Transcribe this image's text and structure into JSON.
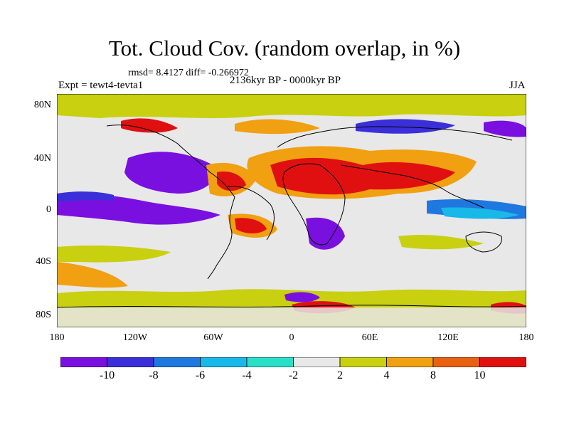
{
  "figure": {
    "title": "Tot. Cloud Cov. (random overlap, in %)",
    "stats": "rmsd= 8.4127 diff= -0.266972",
    "experiment": "Expt = tewt4-tevta1",
    "period": "2136kyr BP - 0000kyr BP",
    "season": "JJA"
  },
  "axes": {
    "lat_labels": [
      "80N",
      "40N",
      "0",
      "40S",
      "80S"
    ],
    "lon_labels": [
      "180",
      "120W",
      "60W",
      "0",
      "60E",
      "120E",
      "180"
    ]
  },
  "colorbar": {
    "labels": [
      "-10",
      "-8",
      "-6",
      "-4",
      "-2",
      "2",
      "4",
      "8",
      "10"
    ],
    "colors": [
      "#7a10e0",
      "#3a2fd8",
      "#1f78e0",
      "#18b8e8",
      "#28e0c8",
      "#e8e8e8",
      "#c8d010",
      "#f0a010",
      "#e86010",
      "#e01010"
    ]
  },
  "map": {
    "projection": "cylindrical equidistant",
    "lon_range": [
      -180,
      180
    ],
    "lat_range": [
      -90,
      90
    ],
    "variable": "total cloud cover difference (%)"
  }
}
